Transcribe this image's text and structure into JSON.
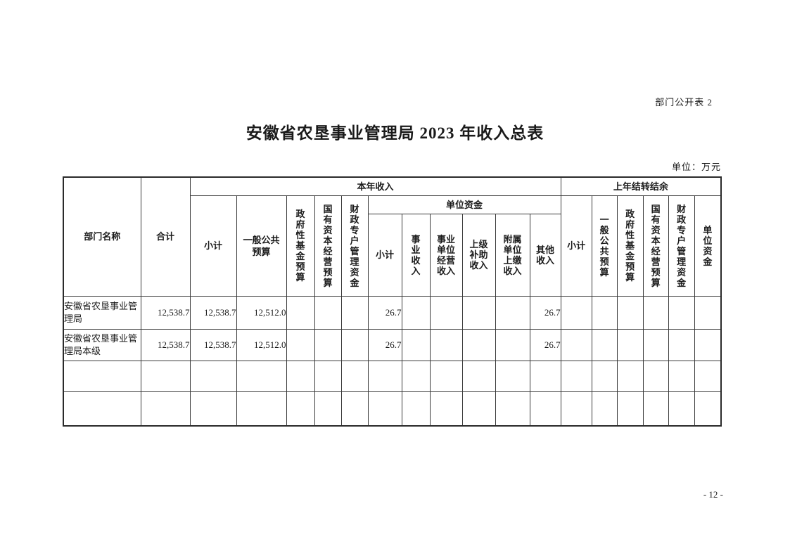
{
  "page": {
    "corner_label": "部门公开表 2",
    "title": "安徽省农垦事业管理局 2023 年收入总表",
    "unit_label": "单位：万元",
    "page_number": "- 12 -"
  },
  "table": {
    "header": {
      "dept": "部门名称",
      "total": "合计",
      "current_year_income": "本年收入",
      "prev_year_carryover": "上年结转结余",
      "subtotal": "小计",
      "general_public_budget": "一般公共预算",
      "gov_fund_budget": "政府性基金预算",
      "state_capital_budget": "国有资本经营预算",
      "fiscal_account_funds": "财政专户管理资金",
      "unit_funds": "单位资金",
      "institutional_income": "事业收入",
      "institutional_operating_income": "事业单位经营收入",
      "superior_subsidy_income": "上级补助收入",
      "subordinate_remit_income": "附属单位上缴收入",
      "other_income": "其他收入"
    },
    "rows": [
      {
        "cells": [
          "安徽省农垦事业管理局",
          "12,538.7",
          "12,538.7",
          "12,512.0",
          "",
          "",
          "",
          "26.7",
          "",
          "",
          "",
          "",
          "26.7",
          "",
          "",
          "",
          "",
          "",
          ""
        ]
      },
      {
        "cells": [
          "安徽省农垦事业管理局本级",
          "12,538.7",
          "12,538.7",
          "12,512.0",
          "",
          "",
          "",
          "26.7",
          "",
          "",
          "",
          "",
          "26.7",
          "",
          "",
          "",
          "",
          "",
          ""
        ]
      },
      {
        "cells": [
          "",
          "",
          "",
          "",
          "",
          "",
          "",
          "",
          "",
          "",
          "",
          "",
          "",
          "",
          "",
          "",
          "",
          "",
          ""
        ]
      },
      {
        "cells": [
          "",
          "",
          "",
          "",
          "",
          "",
          "",
          "",
          "",
          "",
          "",
          "",
          "",
          "",
          "",
          "",
          "",
          "",
          ""
        ]
      }
    ]
  }
}
